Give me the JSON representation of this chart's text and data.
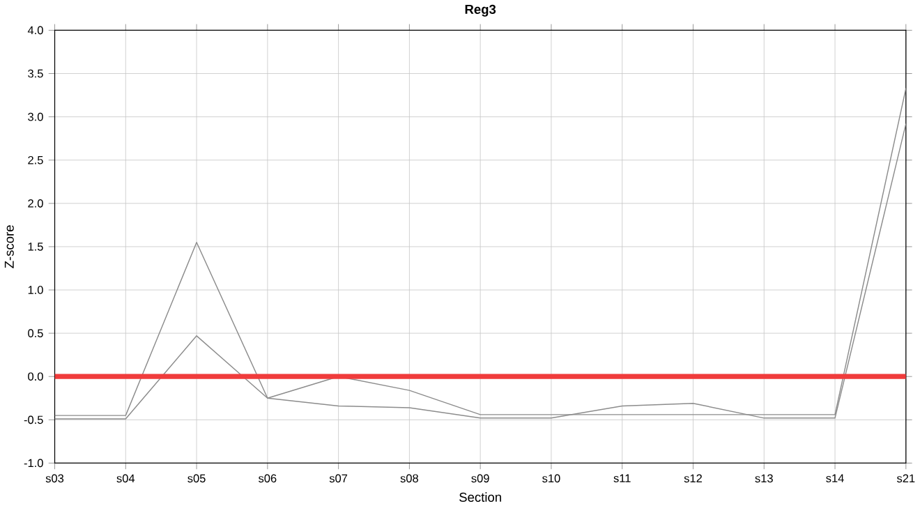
{
  "chart_data": {
    "type": "line",
    "title": "Reg3",
    "xlabel": "Section",
    "ylabel": "Z-score",
    "categories": [
      "s03",
      "s04",
      "s05",
      "s06",
      "s07",
      "s08",
      "s09",
      "s10",
      "s11",
      "s12",
      "s13",
      "s14",
      "s21"
    ],
    "series": [
      {
        "color": "#8c8c8c",
        "values": [
          -0.45,
          -0.45,
          1.55,
          -0.25,
          0.0,
          -0.16,
          -0.44,
          -0.44,
          -0.44,
          -0.44,
          -0.44,
          -0.44,
          3.33
        ]
      },
      {
        "color": "#8c8c8c",
        "values": [
          -0.49,
          -0.49,
          0.47,
          -0.25,
          -0.34,
          -0.36,
          -0.48,
          -0.48,
          -0.34,
          -0.31,
          -0.48,
          -0.48,
          2.92
        ]
      }
    ],
    "ylim": [
      -1.0,
      4.0
    ],
    "yticks": [
      {
        "value": -1,
        "label": "-1.0"
      },
      {
        "value": -0.5,
        "label": "-0.5"
      },
      {
        "value": 0,
        "label": "0.0"
      },
      {
        "value": 0.5,
        "label": "0.5"
      },
      {
        "value": 1,
        "label": "1.0"
      },
      {
        "value": 1.5,
        "label": "1.5"
      },
      {
        "value": 2,
        "label": "2.0"
      },
      {
        "value": 2.5,
        "label": "2.5"
      },
      {
        "value": 3,
        "label": "3.0"
      },
      {
        "value": 3.5,
        "label": "3.5"
      },
      {
        "value": 4,
        "label": "4.0"
      }
    ],
    "grid": true,
    "marker": "none",
    "line_style": "solid",
    "ref_lines": [
      {
        "axis": "y",
        "value": 0,
        "color": "#f03c3c"
      }
    ]
  }
}
